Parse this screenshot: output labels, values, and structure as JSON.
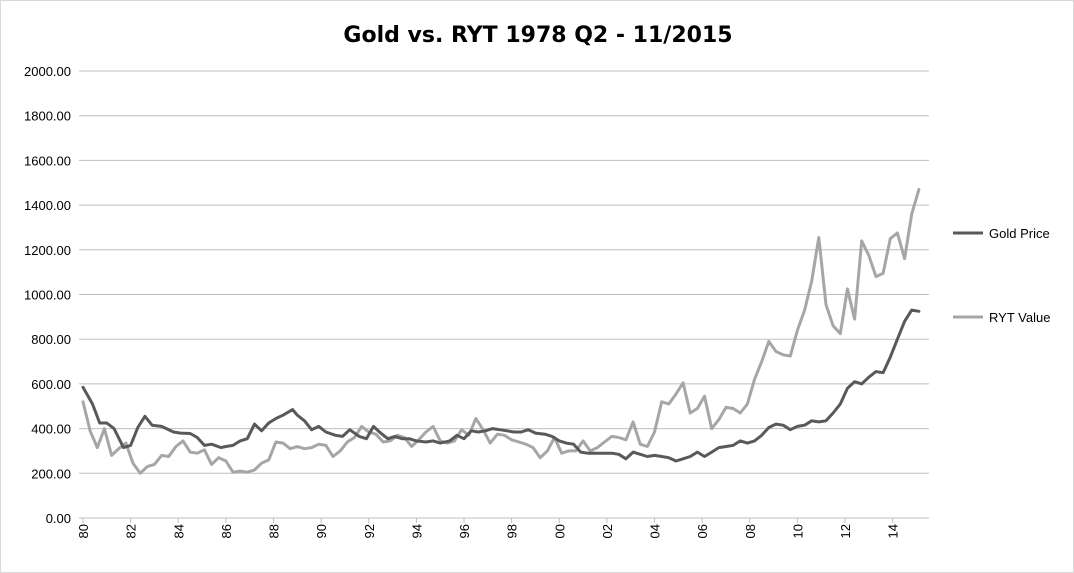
{
  "chart_data": {
    "type": "line",
    "title": "Gold vs. RYT 1978 Q2 - 11/2015",
    "xlabel": "",
    "ylabel": "",
    "ylim": [
      0,
      2000
    ],
    "y_ticks": [
      "0.00",
      "200.00",
      "400.00",
      "600.00",
      "800.00",
      "1000.00",
      "1200.00",
      "1400.00",
      "1600.00",
      "1800.00",
      "2000.00"
    ],
    "x_ticks": [
      "80",
      "82",
      "84",
      "86",
      "88",
      "90",
      "92",
      "94",
      "96",
      "98",
      "00",
      "02",
      "04",
      "06",
      "08",
      "10",
      "12",
      "14"
    ],
    "grid": "horizontal",
    "legend_position": "right",
    "x_start_year": 1980,
    "x_end_year": 2015.4,
    "series": [
      {
        "name": "Gold Price",
        "color": "#595959",
        "points": [
          [
            1980.0,
            585
          ],
          [
            1980.4,
            510
          ],
          [
            1980.7,
            425
          ],
          [
            1981.0,
            425
          ],
          [
            1981.3,
            400
          ],
          [
            1981.7,
            315
          ],
          [
            1982.0,
            325
          ],
          [
            1982.3,
            405
          ],
          [
            1982.6,
            455
          ],
          [
            1982.9,
            415
          ],
          [
            1983.3,
            410
          ],
          [
            1983.8,
            385
          ],
          [
            1984.1,
            380
          ],
          [
            1984.5,
            378
          ],
          [
            1984.8,
            360
          ],
          [
            1985.1,
            325
          ],
          [
            1985.4,
            330
          ],
          [
            1985.8,
            315
          ],
          [
            1986.0,
            320
          ],
          [
            1986.3,
            325
          ],
          [
            1986.6,
            345
          ],
          [
            1986.9,
            355
          ],
          [
            1987.2,
            420
          ],
          [
            1987.5,
            390
          ],
          [
            1987.8,
            425
          ],
          [
            1988.1,
            445
          ],
          [
            1988.4,
            460
          ],
          [
            1988.8,
            485
          ],
          [
            1989.0,
            460
          ],
          [
            1989.3,
            435
          ],
          [
            1989.6,
            395
          ],
          [
            1989.9,
            410
          ],
          [
            1990.2,
            385
          ],
          [
            1990.6,
            370
          ],
          [
            1990.9,
            365
          ],
          [
            1991.2,
            395
          ],
          [
            1991.6,
            365
          ],
          [
            1991.9,
            355
          ],
          [
            1992.2,
            410
          ],
          [
            1992.5,
            380
          ],
          [
            1992.8,
            355
          ],
          [
            1993.1,
            365
          ],
          [
            1993.4,
            355
          ],
          [
            1993.7,
            355
          ],
          [
            1994.0,
            345
          ],
          [
            1994.4,
            340
          ],
          [
            1994.7,
            345
          ],
          [
            1995.0,
            335
          ],
          [
            1995.4,
            345
          ],
          [
            1995.7,
            370
          ],
          [
            1996.0,
            355
          ],
          [
            1996.3,
            390
          ],
          [
            1996.6,
            385
          ],
          [
            1996.9,
            390
          ],
          [
            1997.2,
            400
          ],
          [
            1997.5,
            395
          ],
          [
            1997.8,
            390
          ],
          [
            1998.1,
            385
          ],
          [
            1998.4,
            385
          ],
          [
            1998.7,
            395
          ],
          [
            1999.0,
            380
          ],
          [
            1999.4,
            375
          ],
          [
            1999.7,
            365
          ],
          [
            2000.0,
            345
          ],
          [
            2000.3,
            335
          ],
          [
            2000.6,
            330
          ],
          [
            2000.9,
            295
          ],
          [
            2001.2,
            290
          ],
          [
            2001.5,
            290
          ],
          [
            2001.8,
            290
          ],
          [
            2002.2,
            290
          ],
          [
            2002.5,
            285
          ],
          [
            2002.8,
            265
          ],
          [
            2003.1,
            295
          ],
          [
            2003.4,
            285
          ],
          [
            2003.7,
            275
          ],
          [
            2004.0,
            280
          ],
          [
            2004.3,
            275
          ],
          [
            2004.6,
            270
          ],
          [
            2004.9,
            255
          ],
          [
            2005.2,
            265
          ],
          [
            2005.5,
            275
          ],
          [
            2005.8,
            295
          ],
          [
            2006.1,
            275
          ],
          [
            2006.4,
            295
          ],
          [
            2006.7,
            315
          ],
          [
            2007.0,
            320
          ],
          [
            2007.3,
            325
          ],
          [
            2007.6,
            345
          ],
          [
            2007.9,
            335
          ],
          [
            2008.2,
            345
          ],
          [
            2008.5,
            370
          ],
          [
            2008.8,
            405
          ],
          [
            2009.1,
            420
          ],
          [
            2009.4,
            415
          ],
          [
            2009.7,
            395
          ],
          [
            2010.0,
            410
          ],
          [
            2010.3,
            415
          ],
          [
            2010.6,
            435
          ],
          [
            2010.9,
            430
          ],
          [
            2011.2,
            435
          ],
          [
            2011.5,
            470
          ],
          [
            2011.8,
            510
          ],
          [
            2012.1,
            580
          ],
          [
            2012.4,
            610
          ],
          [
            2012.7,
            600
          ],
          [
            2013.0,
            630
          ],
          [
            2013.3,
            655
          ],
          [
            2013.6,
            650
          ],
          [
            2013.9,
            720
          ],
          [
            2014.2,
            800
          ],
          [
            2014.5,
            880
          ],
          [
            2014.8,
            930
          ],
          [
            2015.1,
            925
          ]
        ]
      },
      {
        "name": "RYT Value",
        "color": "#a6a6a6",
        "points": [
          [
            1980.0,
            520
          ],
          [
            1980.3,
            390
          ],
          [
            1980.6,
            315
          ],
          [
            1980.9,
            400
          ],
          [
            1981.2,
            280
          ],
          [
            1981.5,
            310
          ],
          [
            1981.8,
            335
          ],
          [
            1982.1,
            245
          ],
          [
            1982.4,
            200
          ],
          [
            1982.7,
            230
          ],
          [
            1983.0,
            240
          ],
          [
            1983.3,
            280
          ],
          [
            1983.6,
            275
          ],
          [
            1983.9,
            320
          ],
          [
            1984.2,
            345
          ],
          [
            1984.5,
            295
          ],
          [
            1984.8,
            290
          ],
          [
            1985.1,
            305
          ],
          [
            1985.4,
            240
          ],
          [
            1985.7,
            270
          ],
          [
            1986.0,
            255
          ],
          [
            1986.3,
            205
          ],
          [
            1986.6,
            210
          ],
          [
            1986.9,
            205
          ],
          [
            1987.2,
            215
          ],
          [
            1987.5,
            245
          ],
          [
            1987.8,
            260
          ],
          [
            1988.1,
            340
          ],
          [
            1988.4,
            335
          ],
          [
            1988.7,
            310
          ],
          [
            1989.0,
            320
          ],
          [
            1989.3,
            310
          ],
          [
            1989.6,
            315
          ],
          [
            1989.9,
            330
          ],
          [
            1990.2,
            325
          ],
          [
            1990.5,
            275
          ],
          [
            1990.8,
            300
          ],
          [
            1991.1,
            340
          ],
          [
            1991.4,
            360
          ],
          [
            1991.7,
            410
          ],
          [
            1992.0,
            385
          ],
          [
            1992.3,
            375
          ],
          [
            1992.6,
            340
          ],
          [
            1992.9,
            345
          ],
          [
            1993.2,
            370
          ],
          [
            1993.5,
            360
          ],
          [
            1993.8,
            320
          ],
          [
            1994.1,
            350
          ],
          [
            1994.4,
            385
          ],
          [
            1994.7,
            410
          ],
          [
            1995.0,
            345
          ],
          [
            1995.3,
            335
          ],
          [
            1995.6,
            345
          ],
          [
            1995.9,
            395
          ],
          [
            1996.2,
            370
          ],
          [
            1996.5,
            445
          ],
          [
            1996.8,
            395
          ],
          [
            1997.1,
            335
          ],
          [
            1997.4,
            375
          ],
          [
            1997.7,
            370
          ],
          [
            1998.0,
            350
          ],
          [
            1998.3,
            340
          ],
          [
            1998.6,
            330
          ],
          [
            1998.9,
            315
          ],
          [
            1999.2,
            270
          ],
          [
            1999.5,
            300
          ],
          [
            1999.8,
            360
          ],
          [
            2000.1,
            290
          ],
          [
            2000.4,
            300
          ],
          [
            2000.7,
            300
          ],
          [
            2001.0,
            345
          ],
          [
            2001.3,
            300
          ],
          [
            2001.6,
            315
          ],
          [
            2001.9,
            340
          ],
          [
            2002.2,
            365
          ],
          [
            2002.5,
            360
          ],
          [
            2002.8,
            350
          ],
          [
            2003.1,
            430
          ],
          [
            2003.4,
            330
          ],
          [
            2003.7,
            320
          ],
          [
            2004.0,
            385
          ],
          [
            2004.3,
            520
          ],
          [
            2004.6,
            510
          ],
          [
            2004.9,
            555
          ],
          [
            2005.2,
            605
          ],
          [
            2005.5,
            470
          ],
          [
            2005.8,
            490
          ],
          [
            2006.1,
            545
          ],
          [
            2006.4,
            400
          ],
          [
            2006.7,
            440
          ],
          [
            2007.0,
            495
          ],
          [
            2007.3,
            490
          ],
          [
            2007.6,
            470
          ],
          [
            2007.9,
            510
          ],
          [
            2008.2,
            620
          ],
          [
            2008.5,
            700
          ],
          [
            2008.8,
            790
          ],
          [
            2009.1,
            745
          ],
          [
            2009.4,
            730
          ],
          [
            2009.7,
            725
          ],
          [
            2010.0,
            840
          ],
          [
            2010.3,
            930
          ],
          [
            2010.6,
            1060
          ],
          [
            2010.9,
            1255
          ],
          [
            2011.2,
            955
          ],
          [
            2011.5,
            860
          ],
          [
            2011.8,
            825
          ],
          [
            2012.1,
            1025
          ],
          [
            2012.4,
            890
          ],
          [
            2012.7,
            1240
          ],
          [
            2013.0,
            1175
          ],
          [
            2013.3,
            1080
          ],
          [
            2013.6,
            1095
          ],
          [
            2013.9,
            1250
          ],
          [
            2014.2,
            1275
          ],
          [
            2014.5,
            1160
          ],
          [
            2014.8,
            1360
          ],
          [
            2015.1,
            1470
          ]
        ]
      }
    ]
  }
}
